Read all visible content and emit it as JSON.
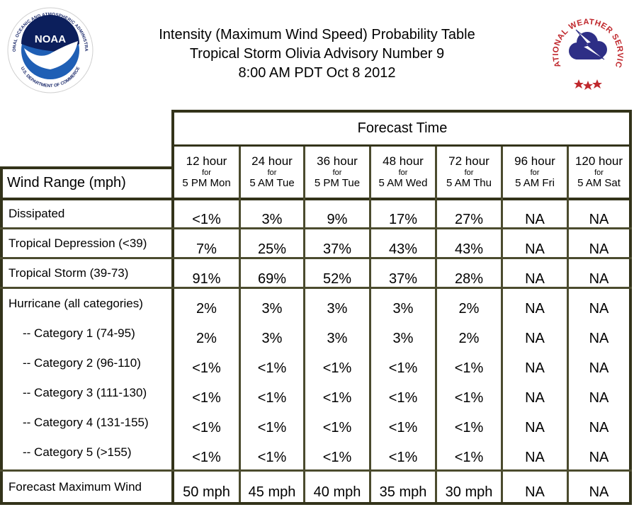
{
  "title": {
    "line1": "Intensity (Maximum Wind Speed) Probability Table",
    "line2": "Tropical Storm Olivia Advisory Number 9",
    "line3": "8:00 AM PDT Oct 8 2012"
  },
  "logos": {
    "noaa_text": "NOAA",
    "noaa_ring": "NATIONAL OCEANIC AND ATMOSPHERIC ADMINISTRATION",
    "noaa_ring_bottom": "U.S. DEPARTMENT OF COMMERCE",
    "nws_ring": "NATIONAL WEATHER SERVICE"
  },
  "table": {
    "forecast_time_label": "Forecast Time",
    "wind_range_label": "Wind Range (mph)",
    "columns": [
      {
        "hours": "12 hour",
        "for": "for",
        "when": "5 PM Mon"
      },
      {
        "hours": "24 hour",
        "for": "for",
        "when": "5 AM Tue"
      },
      {
        "hours": "36 hour",
        "for": "for",
        "when": "5 PM Tue"
      },
      {
        "hours": "48 hour",
        "for": "for",
        "when": "5 AM Wed"
      },
      {
        "hours": "72 hour",
        "for": "for",
        "when": "5 AM Thu"
      },
      {
        "hours": "96 hour",
        "for": "for",
        "when": "5 AM Fri"
      },
      {
        "hours": "120 hour",
        "for": "for",
        "when": "5 AM Sat"
      }
    ],
    "rows": [
      {
        "label": "Dissipated",
        "values": [
          "<1%",
          "3%",
          "9%",
          "17%",
          "27%",
          "NA",
          "NA"
        ]
      },
      {
        "label": "Tropical Depression (<39)",
        "values": [
          "7%",
          "25%",
          "37%",
          "43%",
          "43%",
          "NA",
          "NA"
        ]
      },
      {
        "label": "Tropical Storm (39-73)",
        "values": [
          "91%",
          "69%",
          "52%",
          "37%",
          "28%",
          "NA",
          "NA"
        ]
      },
      {
        "label": "Hurricane (all categories)",
        "values": [
          "2%",
          "3%",
          "3%",
          "3%",
          "2%",
          "NA",
          "NA"
        ]
      },
      {
        "label": "-- Category 1 (74-95)",
        "values": [
          "2%",
          "3%",
          "3%",
          "3%",
          "2%",
          "NA",
          "NA"
        ]
      },
      {
        "label": "-- Category 2 (96-110)",
        "values": [
          "<1%",
          "<1%",
          "<1%",
          "<1%",
          "<1%",
          "NA",
          "NA"
        ]
      },
      {
        "label": "-- Category 3 (111-130)",
        "values": [
          "<1%",
          "<1%",
          "<1%",
          "<1%",
          "<1%",
          "NA",
          "NA"
        ]
      },
      {
        "label": "-- Category 4 (131-155)",
        "values": [
          "<1%",
          "<1%",
          "<1%",
          "<1%",
          "<1%",
          "NA",
          "NA"
        ]
      },
      {
        "label": "-- Category 5 (>155)",
        "values": [
          "<1%",
          "<1%",
          "<1%",
          "<1%",
          "<1%",
          "NA",
          "NA"
        ]
      },
      {
        "label": "Forecast Maximum Wind",
        "values": [
          "50 mph",
          "45 mph",
          "40 mph",
          "35 mph",
          "30 mph",
          "NA",
          "NA"
        ]
      }
    ]
  }
}
